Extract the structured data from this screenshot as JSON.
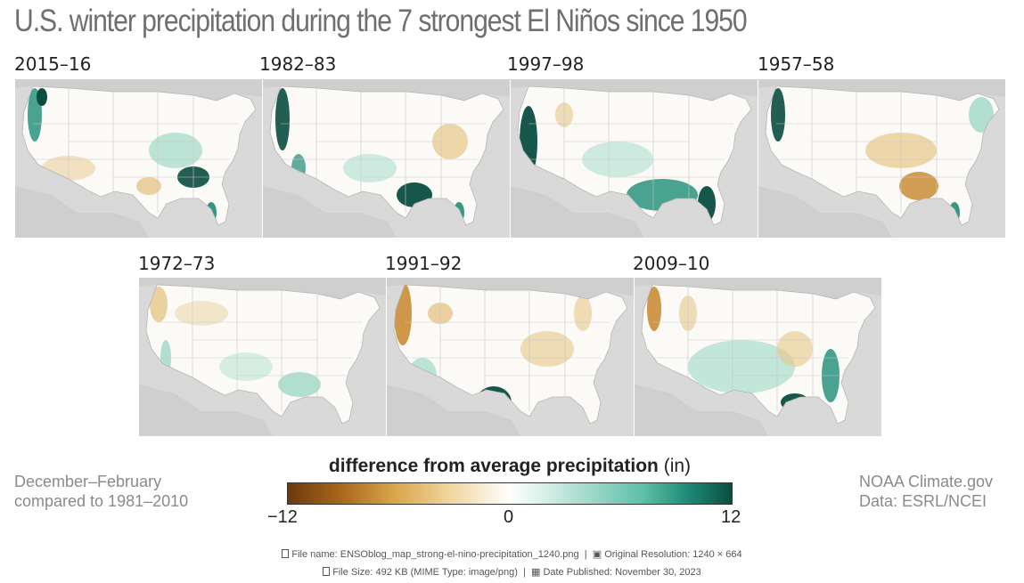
{
  "title": "U.S. winter precipitation during the 7 strongest El Niños since 1950",
  "maps": [
    {
      "label": "2015–16"
    },
    {
      "label": "1982–83"
    },
    {
      "label": "1997–98"
    },
    {
      "label": "1957–58"
    },
    {
      "label": "1972–73"
    },
    {
      "label": "1991–92"
    },
    {
      "label": "2009–10"
    }
  ],
  "period_note": {
    "line1": "December–February",
    "line2": "compared to 1981–2010"
  },
  "legend": {
    "title_bold": "difference from average precipitation",
    "title_unit": "(in)",
    "min_label": "−12",
    "mid_label": "0",
    "max_label": "12",
    "colors": {
      "dry": "#6b3a0d",
      "neutral": "#ffffff",
      "wet": "#0b4d40"
    }
  },
  "credit": {
    "line1": "NOAA Climate.gov",
    "line2": "Data: ESRL/NCEI"
  },
  "footer": {
    "file_name": "File name: ENSOblog_map_strong-el-nino-precipitation_1240.png",
    "resolution": "Original Resolution: 1240 × 664",
    "file_size": "File Size: 492 KB (MIME Type: image/png)",
    "date_published": "Date Published: November 30, 2023"
  }
}
